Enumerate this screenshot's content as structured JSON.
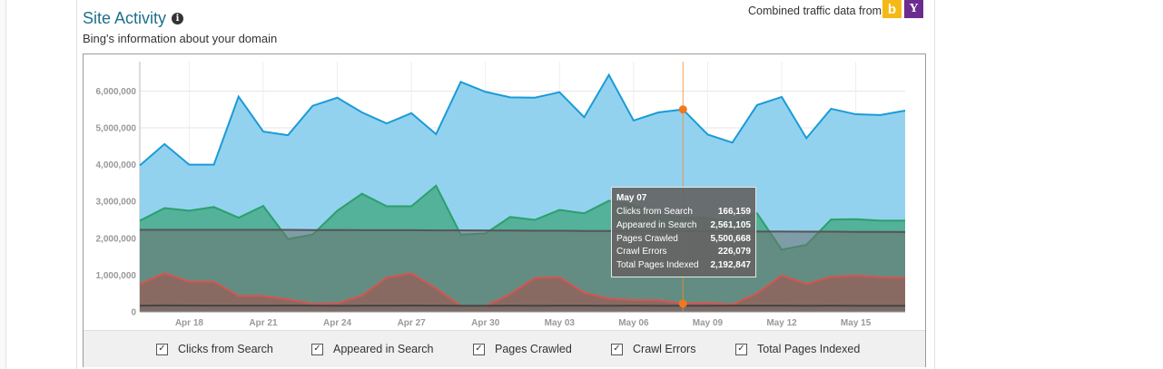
{
  "header": {
    "title": "Site Activity",
    "subtitle": "Bing's information about your domain",
    "combined_text": "Combined traffic data from",
    "info_icon": "info-icon",
    "bing_logo": "b",
    "yahoo_logo": "Y"
  },
  "colors": {
    "clicks": "#1a9bd7",
    "appeared": "#2aa06c",
    "pages_crawled": "#808080",
    "crawl_errors": "#d9534f",
    "total_indexed": "#555555",
    "title": "#1f6f8b"
  },
  "tooltip": {
    "date": "May 07",
    "rows": [
      {
        "label": "Clicks from Search",
        "value": "166,159"
      },
      {
        "label": "Appeared in Search",
        "value": "2,561,105"
      },
      {
        "label": "Pages Crawled",
        "value": "5,500,668"
      },
      {
        "label": "Crawl Errors",
        "value": "226,079"
      },
      {
        "label": "Total Pages Indexed",
        "value": "2,192,847"
      }
    ]
  },
  "legend": [
    {
      "label": "Clicks from Search",
      "checked": true
    },
    {
      "label": "Appeared in Search",
      "checked": true
    },
    {
      "label": "Pages Crawled",
      "checked": true
    },
    {
      "label": "Crawl Errors",
      "checked": true
    },
    {
      "label": "Total Pages Indexed",
      "checked": true
    }
  ],
  "chart_data": {
    "type": "area",
    "x_tick_labels": [
      "Apr 18",
      "Apr 21",
      "Apr 24",
      "Apr 27",
      "Apr 30",
      "May 03",
      "May 06",
      "May 09",
      "May 12",
      "May 15"
    ],
    "y_tick_labels": [
      "0",
      "1,000,000",
      "2,000,000",
      "3,000,000",
      "4,000,000",
      "5,000,000",
      "6,000,000"
    ],
    "ylim": [
      0,
      6800000
    ],
    "highlight_index": 22,
    "series": [
      {
        "name": "Pages Crawled",
        "color": "#1a9bd7",
        "values": [
          3980000,
          4560000,
          4000000,
          4000000,
          5850000,
          4900000,
          4800000,
          5600000,
          5820000,
          5420000,
          5120000,
          5400000,
          4830000,
          6250000,
          5980000,
          5830000,
          5820000,
          5970000,
          5290000,
          6440000,
          5200000,
          5420000,
          5500668,
          4820000,
          4600000,
          5620000,
          5840000,
          4720000,
          5520000,
          5370000,
          5350000,
          5470000
        ]
      },
      {
        "name": "Appeared in Search",
        "color": "#2aa06c",
        "values": [
          2480000,
          2820000,
          2750000,
          2850000,
          2560000,
          2880000,
          1980000,
          2100000,
          2750000,
          3210000,
          2870000,
          2870000,
          3430000,
          2100000,
          2130000,
          2580000,
          2500000,
          2770000,
          2680000,
          3020000,
          2900000,
          2650000,
          2561105,
          2550000,
          2450000,
          2680000,
          1690000,
          1820000,
          2510000,
          2520000,
          2480000,
          2480000
        ]
      },
      {
        "name": "Total Pages Indexed",
        "color": "#555555",
        "values": [
          2230000,
          2230000,
          2230000,
          2230000,
          2230000,
          2230000,
          2230000,
          2225000,
          2225000,
          2220000,
          2220000,
          2220000,
          2215000,
          2215000,
          2210000,
          2210000,
          2205000,
          2205000,
          2200000,
          2200000,
          2195000,
          2195000,
          2192847,
          2190000,
          2190000,
          2185000,
          2185000,
          2180000,
          2180000,
          2175000,
          2175000,
          2170000
        ]
      },
      {
        "name": "Crawl Errors",
        "color": "#d9534f",
        "values": [
          750000,
          1050000,
          820000,
          820000,
          430000,
          430000,
          340000,
          220000,
          230000,
          440000,
          930000,
          1050000,
          640000,
          160000,
          160000,
          480000,
          920000,
          940000,
          520000,
          360000,
          320000,
          310000,
          226079,
          240000,
          200000,
          500000,
          990000,
          760000,
          950000,
          990000,
          940000,
          920000
        ]
      },
      {
        "name": "Clicks from Search",
        "color": "#444444",
        "values": [
          170000,
          175000,
          172000,
          170000,
          168000,
          170000,
          172000,
          168000,
          165000,
          170000,
          168000,
          172000,
          170000,
          166000,
          165000,
          168000,
          167000,
          170000,
          168000,
          166000,
          168000,
          167000,
          166159,
          165000,
          168000,
          170000,
          168000,
          166000,
          168000,
          167000,
          165000,
          166000
        ]
      }
    ]
  }
}
